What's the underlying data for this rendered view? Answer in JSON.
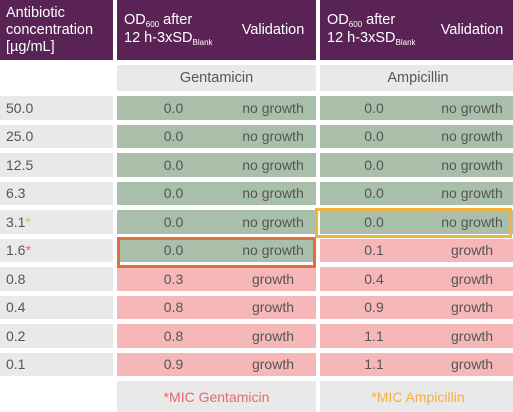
{
  "header": {
    "concentration_lines": [
      "Antibiotic",
      "concentration",
      "[µg/mL]"
    ],
    "od_text": "OD",
    "od_sub": "600",
    "od_after": " after",
    "od_line2": "12 h-3xSD",
    "od_sub2": "Blank",
    "validation": "Validation"
  },
  "subheaders": {
    "gentamicin": "Gentamicin",
    "ampicillin": "Ampicillin"
  },
  "rows": [
    {
      "conc": "50.0",
      "star": "",
      "gent_od": "0.0",
      "gent_val": "no growth",
      "amp_od": "0.0",
      "amp_val": "no growth"
    },
    {
      "conc": "25.0",
      "star": "",
      "gent_od": "0.0",
      "gent_val": "no growth",
      "amp_od": "0.0",
      "amp_val": "no growth"
    },
    {
      "conc": "12.5",
      "star": "",
      "gent_od": "0.0",
      "gent_val": "no growth",
      "amp_od": "0.0",
      "amp_val": "no growth"
    },
    {
      "conc": "6.3",
      "star": "",
      "gent_od": "0.0",
      "gent_val": "no growth",
      "amp_od": "0.0",
      "amp_val": "no growth"
    },
    {
      "conc": "3.1",
      "star": "*",
      "gent_od": "0.0",
      "gent_val": "no growth",
      "amp_od": "0.0",
      "amp_val": "no growth"
    },
    {
      "conc": "1.6",
      "star": "*",
      "gent_od": "0.0",
      "gent_val": "no growth",
      "amp_od": "0.1",
      "amp_val": "growth"
    },
    {
      "conc": "0.8",
      "star": "",
      "gent_od": "0.3",
      "gent_val": "growth",
      "amp_od": "0.4",
      "amp_val": "growth"
    },
    {
      "conc": "0.4",
      "star": "",
      "gent_od": "0.8",
      "gent_val": "growth",
      "amp_od": "0.9",
      "amp_val": "growth"
    },
    {
      "conc": "0.2",
      "star": "",
      "gent_od": "0.8",
      "gent_val": "growth",
      "amp_od": "1.1",
      "amp_val": "growth"
    },
    {
      "conc": "0.1",
      "star": "",
      "gent_od": "0.9",
      "gent_val": "growth",
      "amp_od": "1.1",
      "amp_val": "growth"
    }
  ],
  "footer": {
    "gentamicin": "*MIC Gentamicin",
    "ampicillin": "*MIC Ampicillin"
  },
  "colors": {
    "header": "#5a2355",
    "no_growth": "#a9bfaa",
    "growth": "#f5b7b7",
    "neutral": "#e9e9ea",
    "mic_gentamicin": "#e36e3c",
    "mic_ampicillin": "#f3b23d"
  }
}
